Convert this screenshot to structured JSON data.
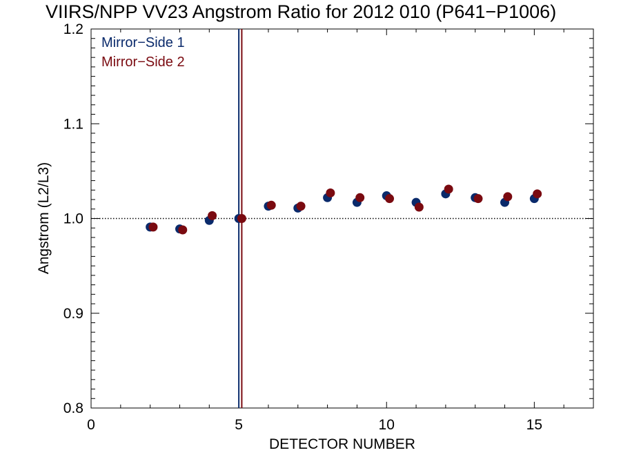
{
  "chart_data": {
    "type": "scatter",
    "title": "VIIRS/NPP VV23 Angstrom Ratio for 2012 010 (P641−P1006)",
    "xlabel": "DETECTOR NUMBER",
    "ylabel": "Angstrom (L2/L3)",
    "xlim": [
      0,
      17
    ],
    "ylim": [
      0.8,
      1.2
    ],
    "x_ticks": [
      0,
      5,
      10,
      15
    ],
    "x_tick_labels": [
      "0",
      "5",
      "10",
      "15"
    ],
    "y_ticks": [
      0.8,
      0.9,
      1.0,
      1.1,
      1.2
    ],
    "y_tick_labels": [
      "0.8",
      "0.9",
      "1.0",
      "1.1",
      "1.2"
    ],
    "reference_line": {
      "y": 1.0,
      "style": "dotted"
    },
    "vertical_markers": [
      {
        "x": 5.0,
        "color": "#0a2a6b"
      },
      {
        "x": 5.1,
        "color": "#7a0a10"
      }
    ],
    "legend_placement": "top-left",
    "grid": false,
    "series": [
      {
        "name": "Mirror−Side 1",
        "color": "#0a2a6b",
        "x": [
          2,
          3,
          4,
          5,
          6,
          7,
          8,
          9,
          10,
          11,
          12,
          13,
          14,
          15
        ],
        "y": [
          0.991,
          0.989,
          0.998,
          1.0,
          1.013,
          1.011,
          1.022,
          1.017,
          1.024,
          1.017,
          1.026,
          1.022,
          1.017,
          1.021
        ]
      },
      {
        "name": "Mirror−Side 2",
        "color": "#7a0a10",
        "x": [
          2.1,
          3.1,
          4.1,
          5.1,
          6.1,
          7.1,
          8.1,
          9.1,
          10.1,
          11.1,
          12.1,
          13.1,
          14.1,
          15.1
        ],
        "y": [
          0.991,
          0.988,
          1.003,
          1.0,
          1.014,
          1.013,
          1.027,
          1.022,
          1.021,
          1.012,
          1.031,
          1.021,
          1.023,
          1.026
        ]
      }
    ]
  }
}
